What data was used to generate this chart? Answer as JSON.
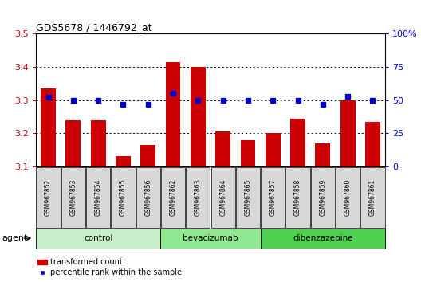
{
  "title": "GDS5678 / 1446792_at",
  "samples": [
    "GSM967852",
    "GSM967853",
    "GSM967854",
    "GSM967855",
    "GSM967856",
    "GSM967862",
    "GSM967863",
    "GSM967864",
    "GSM967865",
    "GSM967857",
    "GSM967858",
    "GSM967859",
    "GSM967860",
    "GSM967861"
  ],
  "bar_values": [
    3.335,
    3.24,
    3.24,
    3.13,
    3.165,
    3.415,
    3.4,
    3.205,
    3.18,
    3.2,
    3.245,
    3.17,
    3.3,
    3.235
  ],
  "dot_values": [
    52,
    50,
    50,
    47,
    47,
    55,
    50,
    50,
    50,
    50,
    50,
    47,
    53,
    50
  ],
  "groups": [
    {
      "label": "control",
      "start": 0,
      "end": 5,
      "color": "#c8f0c8"
    },
    {
      "label": "bevacizumab",
      "start": 5,
      "end": 9,
      "color": "#90e890"
    },
    {
      "label": "dibenzazepine",
      "start": 9,
      "end": 14,
      "color": "#50d050"
    }
  ],
  "bar_color": "#cc0000",
  "dot_color": "#0000cc",
  "ylim_left": [
    3.1,
    3.5
  ],
  "ylim_right": [
    0,
    100
  ],
  "yticks_left": [
    3.1,
    3.2,
    3.3,
    3.4,
    3.5
  ],
  "yticks_right": [
    0,
    25,
    50,
    75,
    100
  ],
  "bar_width": 0.6,
  "agent_label": "agent",
  "legend_bar_label": "transformed count",
  "legend_dot_label": "percentile rank within the sample",
  "sample_box_color": "#d8d8d8",
  "bar_left_color": "#cc0000",
  "dot_right_color": "#0000cc",
  "grid_color": "black"
}
